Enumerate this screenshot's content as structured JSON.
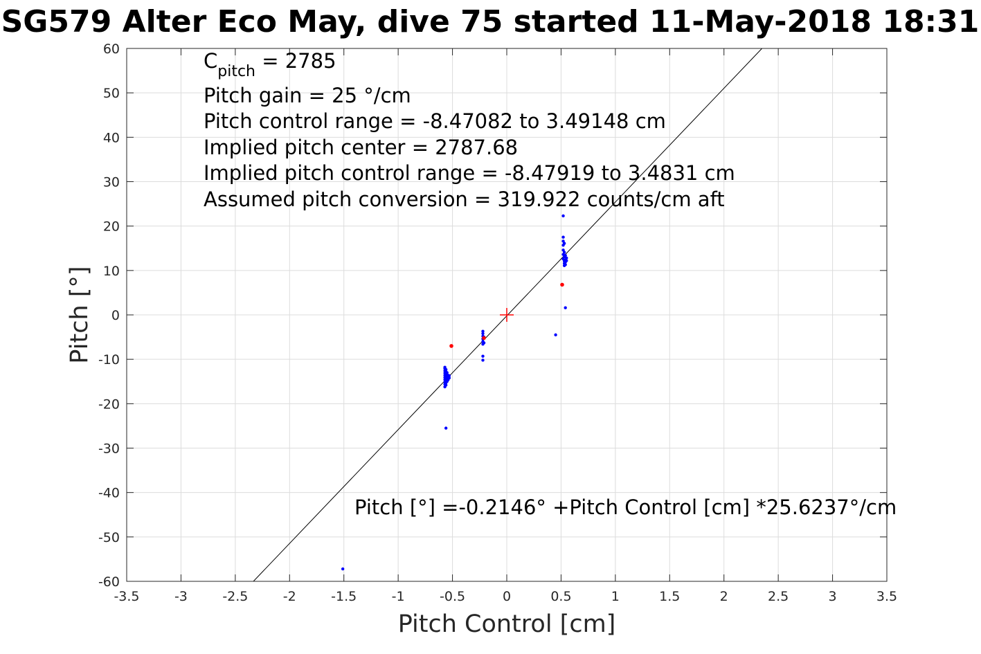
{
  "chart_data": {
    "type": "scatter",
    "title": "SG579 Alter Eco May, dive 75 started 11-May-2018 18:31",
    "xlabel": "Pitch Control [cm]",
    "ylabel": "Pitch [°]",
    "xlim": [
      -3.5,
      3.5
    ],
    "ylim": [
      -60,
      60
    ],
    "grid": true,
    "x_ticks": [
      "-3.5",
      "-3",
      "-2.5",
      "-2",
      "-1.5",
      "-1",
      "-0.5",
      "0",
      "0.5",
      "1",
      "1.5",
      "2",
      "2.5",
      "3",
      "3.5"
    ],
    "y_ticks": [
      "60",
      "50",
      "40",
      "30",
      "20",
      "10",
      "0",
      "-10",
      "-20",
      "-30",
      "-40",
      "-50",
      "-60"
    ],
    "colors": {
      "data_points": "#0000ff",
      "outlier_points": "#ff0000",
      "center_marker": "#ff0000",
      "fit_line": "#000000"
    },
    "annotations": {
      "cpitch": {
        "base": "C",
        "sub": "pitch",
        "rest": " = 2785"
      },
      "lines": [
        "Pitch gain = 25 °/cm",
        "Pitch control range = -8.47082 to 3.49148 cm",
        "Implied pitch center = 2787.68",
        "Implied pitch control range = -8.47919 to 3.4831 cm",
        "Assumed pitch conversion = 319.922 counts/cm aft"
      ],
      "fit_equation": "Pitch [°] =-0.2146° +Pitch Control [cm] *25.6237°/cm"
    },
    "fit": {
      "intercept": -0.2146,
      "slope": 25.6237
    },
    "center_marker": {
      "x": 0,
      "y": 0
    },
    "series": [
      {
        "role": "data",
        "points": [
          [
            -0.57,
            -16.2
          ],
          [
            -0.57,
            -15.6
          ],
          [
            -0.57,
            -15.1
          ],
          [
            -0.57,
            -14.6
          ],
          [
            -0.57,
            -14.1
          ],
          [
            -0.57,
            -13.6
          ],
          [
            -0.57,
            -13.1
          ],
          [
            -0.57,
            -12.6
          ],
          [
            -0.57,
            -12.1
          ],
          [
            -0.57,
            -11.8
          ],
          [
            -0.56,
            -15.8
          ],
          [
            -0.56,
            -15.3
          ],
          [
            -0.56,
            -14.8
          ],
          [
            -0.56,
            -14.3
          ],
          [
            -0.56,
            -13.8
          ],
          [
            -0.56,
            -13.3
          ],
          [
            -0.56,
            -12.8
          ],
          [
            -0.56,
            -12.3
          ],
          [
            -0.55,
            -15.0
          ],
          [
            -0.55,
            -14.5
          ],
          [
            -0.55,
            -14.0
          ],
          [
            -0.55,
            -13.5
          ],
          [
            -0.55,
            -13.0
          ],
          [
            -0.54,
            -14.6
          ],
          [
            -0.54,
            -14.1
          ],
          [
            -0.54,
            -13.6
          ],
          [
            -0.53,
            -14.2
          ],
          [
            -0.53,
            -13.7
          ],
          [
            -0.56,
            -25.5
          ],
          [
            -1.51,
            -57.2
          ],
          [
            -0.22,
            -3.7
          ],
          [
            -0.22,
            -4.2
          ],
          [
            -0.22,
            -4.8
          ],
          [
            -0.22,
            -5.4
          ],
          [
            -0.22,
            -6.0
          ],
          [
            -0.22,
            -6.6
          ],
          [
            -0.22,
            -9.3
          ],
          [
            -0.22,
            -10.2
          ],
          [
            -0.21,
            -5.0
          ],
          [
            -0.21,
            -6.3
          ],
          [
            0.45,
            -4.5
          ],
          [
            0.54,
            1.6
          ],
          [
            0.52,
            22.3
          ],
          [
            0.52,
            17.5
          ],
          [
            0.52,
            16.6
          ],
          [
            0.52,
            15.7
          ],
          [
            0.52,
            14.6
          ],
          [
            0.52,
            13.6
          ],
          [
            0.52,
            12.6
          ],
          [
            0.53,
            16.1
          ],
          [
            0.53,
            14.1
          ],
          [
            0.53,
            13.1
          ],
          [
            0.53,
            12.1
          ],
          [
            0.53,
            11.6
          ],
          [
            0.53,
            11.1
          ],
          [
            0.54,
            13.4
          ],
          [
            0.54,
            12.4
          ],
          [
            0.54,
            11.9
          ],
          [
            0.54,
            11.3
          ],
          [
            0.55,
            12.8
          ],
          [
            0.55,
            12.2
          ]
        ]
      },
      {
        "role": "flagged",
        "points": [
          [
            -0.51,
            -7.0
          ],
          [
            0.51,
            6.8
          ],
          [
            -0.21,
            -5.2
          ]
        ]
      }
    ]
  }
}
